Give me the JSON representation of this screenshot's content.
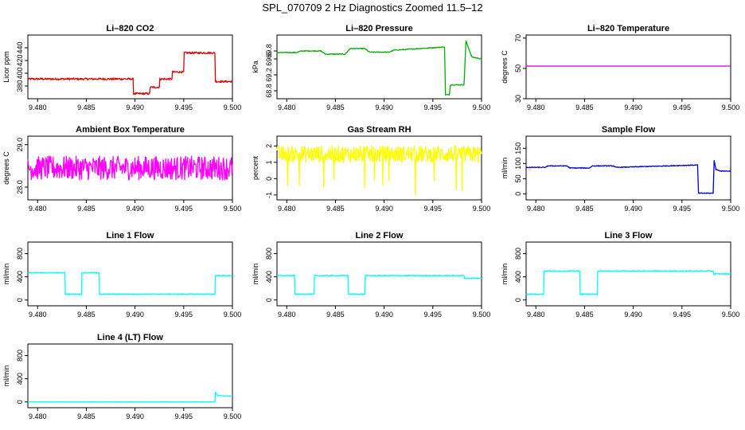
{
  "figure": {
    "title": "SPL_070709  2 Hz Diagnostics Zoomed 11.5–12"
  },
  "chart_data": [
    {
      "type": "line",
      "title": "Li–820 CO2",
      "ylabel": "Licor ppm",
      "color": "#dd0000",
      "xlim": [
        9.479,
        9.5
      ],
      "ylim": [
        360,
        460
      ],
      "xticks": [
        "9.480",
        "9.485",
        "9.490",
        "9.495",
        "9.500"
      ],
      "yticks": [
        "380",
        "400",
        "420",
        "440"
      ],
      "series": [
        {
          "x": [
            9.479,
            9.4898,
            9.4898,
            9.4915,
            9.4915,
            9.4925,
            9.4925,
            9.4938,
            9.4938,
            9.495,
            9.495,
            9.4982,
            9.4982,
            9.5
          ],
          "y": [
            391,
            391,
            368,
            368,
            378,
            378,
            391,
            391,
            402,
            402,
            432,
            432,
            387,
            387
          ],
          "noise": 1.5
        }
      ]
    },
    {
      "type": "line",
      "title": "Li–820 Pressure",
      "ylabel": "kPa",
      "color": "#00b000",
      "xlim": [
        9.479,
        9.5
      ],
      "ylim": [
        68.6,
        70.2
      ],
      "xticks": [
        "9.480",
        "9.485",
        "9.490",
        "9.495",
        "9.500"
      ],
      "yticks": [
        "68.8",
        "69.2",
        "69.6",
        "69.8"
      ],
      "series": [
        {
          "x": [
            9.479,
            9.481,
            9.4815,
            9.4835,
            9.484,
            9.486,
            9.4865,
            9.488,
            9.4885,
            9.4905,
            9.491,
            9.4962,
            9.4963,
            9.4967,
            9.4968,
            9.4982,
            9.4984,
            9.499,
            9.5
          ],
          "y": [
            69.76,
            69.76,
            69.8,
            69.8,
            69.72,
            69.72,
            69.86,
            69.86,
            69.77,
            69.77,
            69.82,
            69.9,
            68.7,
            68.7,
            68.95,
            68.95,
            70.05,
            69.65,
            69.6
          ],
          "noise": 0.01
        }
      ]
    },
    {
      "type": "line",
      "title": "Li–820 Temperature",
      "ylabel": "degrees C",
      "color": "#cc00cc",
      "xlim": [
        9.479,
        9.5
      ],
      "ylim": [
        30,
        72
      ],
      "xticks": [
        "9.480",
        "9.485",
        "9.490",
        "9.495",
        "9.500"
      ],
      "yticks": [
        "30",
        "50",
        "70"
      ],
      "series": [
        {
          "x": [
            9.479,
            9.5
          ],
          "y": [
            51.5,
            51.5
          ],
          "noise": 0
        }
      ]
    },
    {
      "type": "line",
      "title": "Ambient Box Temperature",
      "ylabel": "degrees C",
      "color": "#ff00ff",
      "xlim": [
        9.479,
        9.5
      ],
      "ylim": [
        27.7,
        29.2
      ],
      "xticks": [
        "9.480",
        "9.485",
        "9.490",
        "9.495",
        "9.500"
      ],
      "yticks": [
        "28.0",
        "29.0"
      ],
      "series": [
        {
          "x": [
            9.479,
            9.5
          ],
          "y": [
            28.45,
            28.45
          ],
          "noise": 0.28
        }
      ]
    },
    {
      "type": "line",
      "title": "Gas Stream RH",
      "ylabel": "percent",
      "color": "#ffff00",
      "xlim": [
        9.479,
        9.5
      ],
      "ylim": [
        -1.3,
        2.6
      ],
      "xticks": [
        "9.480",
        "9.485",
        "9.490",
        "9.495",
        "9.500"
      ],
      "yticks": [
        "-1",
        "0",
        "1",
        "2"
      ],
      "series": [
        {
          "x": [
            9.479,
            9.5
          ],
          "y": [
            1.5,
            1.5
          ],
          "noise": 0.5
        }
      ]
    },
    {
      "type": "line",
      "title": "Sample Flow",
      "ylabel": "ml/min",
      "color": "#0000cc",
      "xlim": [
        9.479,
        9.5
      ],
      "ylim": [
        -20,
        190
      ],
      "xticks": [
        "9.480",
        "9.485",
        "9.490",
        "9.495",
        "9.500"
      ],
      "yticks": [
        "0",
        "50",
        "100",
        "150"
      ],
      "series": [
        {
          "x": [
            9.479,
            9.481,
            9.4812,
            9.4832,
            9.4835,
            9.4855,
            9.4858,
            9.488,
            9.4882,
            9.4966,
            9.4967,
            9.4982,
            9.4983,
            9.4985,
            9.499,
            9.5
          ],
          "y": [
            87,
            87,
            92,
            92,
            85,
            85,
            92,
            92,
            87,
            95,
            2,
            2,
            110,
            80,
            75,
            75
          ],
          "noise": 1.2
        }
      ]
    },
    {
      "type": "line",
      "title": "Line 1 Flow",
      "ylabel": "ml/min",
      "color": "#00ffff",
      "xlim": [
        9.479,
        9.5
      ],
      "ylim": [
        -100,
        1000
      ],
      "xticks": [
        "9.480",
        "9.485",
        "9.490",
        "9.495",
        "9.500"
      ],
      "yticks": [
        "0",
        "400",
        "800"
      ],
      "series": [
        {
          "x": [
            9.479,
            9.4828,
            9.4828,
            9.4845,
            9.4845,
            9.4863,
            9.4863,
            9.4982,
            9.4982,
            9.5
          ],
          "y": [
            470,
            470,
            100,
            100,
            470,
            470,
            100,
            100,
            420,
            420
          ],
          "noise": 8
        }
      ]
    },
    {
      "type": "line",
      "title": "Line 2 Flow",
      "ylabel": "ml/min",
      "color": "#00ffff",
      "xlim": [
        9.479,
        9.5
      ],
      "ylim": [
        -100,
        1000
      ],
      "xticks": [
        "9.480",
        "9.485",
        "9.490",
        "9.495",
        "9.500"
      ],
      "yticks": [
        "0",
        "400",
        "800"
      ],
      "series": [
        {
          "x": [
            9.479,
            9.4808,
            9.4808,
            9.4828,
            9.4828,
            9.4863,
            9.4863,
            9.488,
            9.488,
            9.4982,
            9.4982,
            9.5
          ],
          "y": [
            420,
            420,
            100,
            100,
            420,
            420,
            100,
            100,
            420,
            420,
            375,
            375
          ],
          "noise": 8
        }
      ]
    },
    {
      "type": "line",
      "title": "Line 3 Flow",
      "ylabel": "ml/min",
      "color": "#00ffff",
      "xlim": [
        9.479,
        9.5
      ],
      "ylim": [
        -100,
        1000
      ],
      "xticks": [
        "9.480",
        "9.485",
        "9.490",
        "9.495",
        "9.500"
      ],
      "yticks": [
        "0",
        "400",
        "800"
      ],
      "series": [
        {
          "x": [
            9.479,
            9.4808,
            9.4808,
            9.4845,
            9.4845,
            9.4863,
            9.4863,
            9.4982,
            9.4982,
            9.5
          ],
          "y": [
            100,
            100,
            500,
            500,
            100,
            100,
            500,
            500,
            450,
            450
          ],
          "noise": 8
        }
      ]
    },
    {
      "type": "line",
      "title": "Line 4 (LT) Flow",
      "ylabel": "ml/min",
      "color": "#00ffff",
      "xlim": [
        9.479,
        9.5
      ],
      "ylim": [
        -100,
        1000
      ],
      "xticks": [
        "9.480",
        "9.485",
        "9.490",
        "9.495",
        "9.500"
      ],
      "yticks": [
        "0",
        "400",
        "800"
      ],
      "series": [
        {
          "x": [
            9.479,
            9.4982,
            9.4982,
            9.4985,
            9.5
          ],
          "y": [
            0,
            0,
            180,
            110,
            100
          ],
          "noise": 2
        }
      ]
    }
  ]
}
